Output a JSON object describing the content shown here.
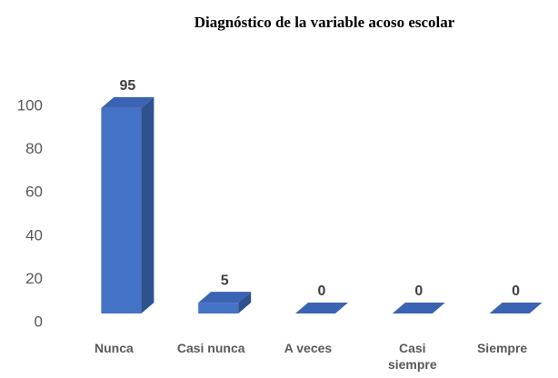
{
  "chart_data": {
    "type": "bar3d",
    "title": "Diagnóstico de la variable acoso escolar",
    "categories": [
      "Nunca",
      "Casi nunca",
      "A veces",
      "Casi siempre",
      "Siempre"
    ],
    "values": [
      95,
      5,
      0,
      0,
      0
    ],
    "color": "#4472c4",
    "ylim": [
      0,
      100
    ],
    "yticks": [
      0,
      20,
      40,
      60,
      80,
      100
    ],
    "grid": false
  }
}
